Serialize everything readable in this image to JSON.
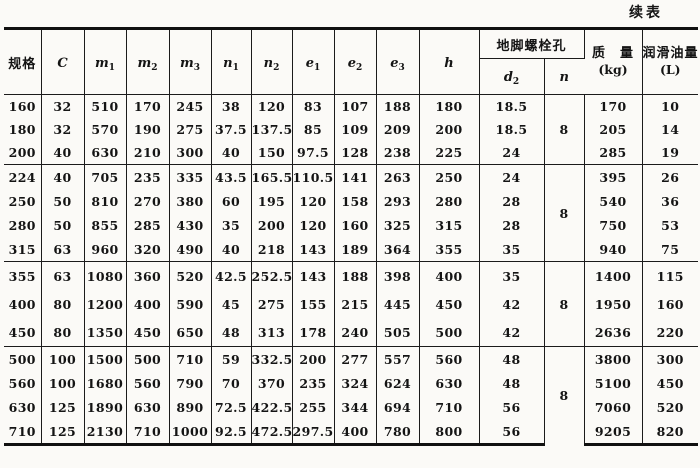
{
  "page": {
    "continued_label": "续表"
  },
  "table": {
    "header": {
      "spec_label": "规格",
      "math_cols": [
        {
          "base": "C",
          "sub": ""
        },
        {
          "base": "m",
          "sub": "1"
        },
        {
          "base": "m",
          "sub": "2"
        },
        {
          "base": "m",
          "sub": "3"
        },
        {
          "base": "n",
          "sub": "1"
        },
        {
          "base": "n",
          "sub": "2"
        },
        {
          "base": "e",
          "sub": "1"
        },
        {
          "base": "e",
          "sub": "2"
        },
        {
          "base": "e",
          "sub": "3"
        },
        {
          "base": "h",
          "sub": ""
        }
      ],
      "anchor_bolt_label": "地脚螺栓孔",
      "bolt_dia": {
        "base": "d",
        "sub": "2"
      },
      "bolt_count": {
        "base": "n",
        "sub": ""
      },
      "mass_label": "质　量",
      "mass_unit": "(kg)",
      "oil_label": "润滑油量",
      "oil_unit": "(L)"
    },
    "groups": [
      {
        "bolt_count": "8",
        "rows": [
          [
            "160",
            "32",
            "510",
            "170",
            "245",
            "38",
            "120",
            "83",
            "107",
            "188",
            "180",
            "18.5",
            "170",
            "10"
          ],
          [
            "180",
            "32",
            "570",
            "190",
            "275",
            "37.5",
            "137.5",
            "85",
            "109",
            "209",
            "200",
            "18.5",
            "205",
            "14"
          ],
          [
            "200",
            "40",
            "630",
            "210",
            "300",
            "40",
            "150",
            "97.5",
            "128",
            "238",
            "225",
            "24",
            "285",
            "19"
          ]
        ]
      },
      {
        "bolt_count": "8",
        "rows": [
          [
            "224",
            "40",
            "705",
            "235",
            "335",
            "43.5",
            "165.5",
            "110.5",
            "141",
            "263",
            "250",
            "24",
            "395",
            "26"
          ],
          [
            "250",
            "50",
            "810",
            "270",
            "380",
            "60",
            "195",
            "120",
            "158",
            "293",
            "280",
            "28",
            "540",
            "36"
          ],
          [
            "280",
            "50",
            "855",
            "285",
            "430",
            "35",
            "200",
            "120",
            "160",
            "325",
            "315",
            "28",
            "750",
            "53"
          ],
          [
            "315",
            "63",
            "960",
            "320",
            "490",
            "40",
            "218",
            "143",
            "189",
            "364",
            "355",
            "35",
            "940",
            "75"
          ]
        ]
      },
      {
        "bolt_count": "8",
        "rows": [
          [
            "355",
            "63",
            "1080",
            "360",
            "520",
            "42.5",
            "252.5",
            "143",
            "188",
            "398",
            "400",
            "35",
            "1400",
            "115"
          ],
          [
            "400",
            "80",
            "1200",
            "400",
            "590",
            "45",
            "275",
            "155",
            "215",
            "445",
            "450",
            "42",
            "1950",
            "160"
          ],
          [
            "450",
            "80",
            "1350",
            "450",
            "650",
            "48",
            "313",
            "178",
            "240",
            "505",
            "500",
            "42",
            "2636",
            "220"
          ]
        ]
      },
      {
        "bolt_count": "8",
        "rows": [
          [
            "500",
            "100",
            "1500",
            "500",
            "710",
            "59",
            "332.5",
            "200",
            "277",
            "557",
            "560",
            "48",
            "3800",
            "300"
          ],
          [
            "560",
            "100",
            "1680",
            "560",
            "790",
            "70",
            "370",
            "235",
            "324",
            "624",
            "630",
            "48",
            "5100",
            "450"
          ],
          [
            "630",
            "125",
            "1890",
            "630",
            "890",
            "72.5",
            "422.5",
            "255",
            "344",
            "694",
            "710",
            "56",
            "7060",
            "520"
          ],
          [
            "710",
            "125",
            "2130",
            "710",
            "1000",
            "92.5",
            "472.5",
            "297.5",
            "400",
            "780",
            "800",
            "56",
            "9205",
            "820"
          ]
        ]
      }
    ]
  }
}
